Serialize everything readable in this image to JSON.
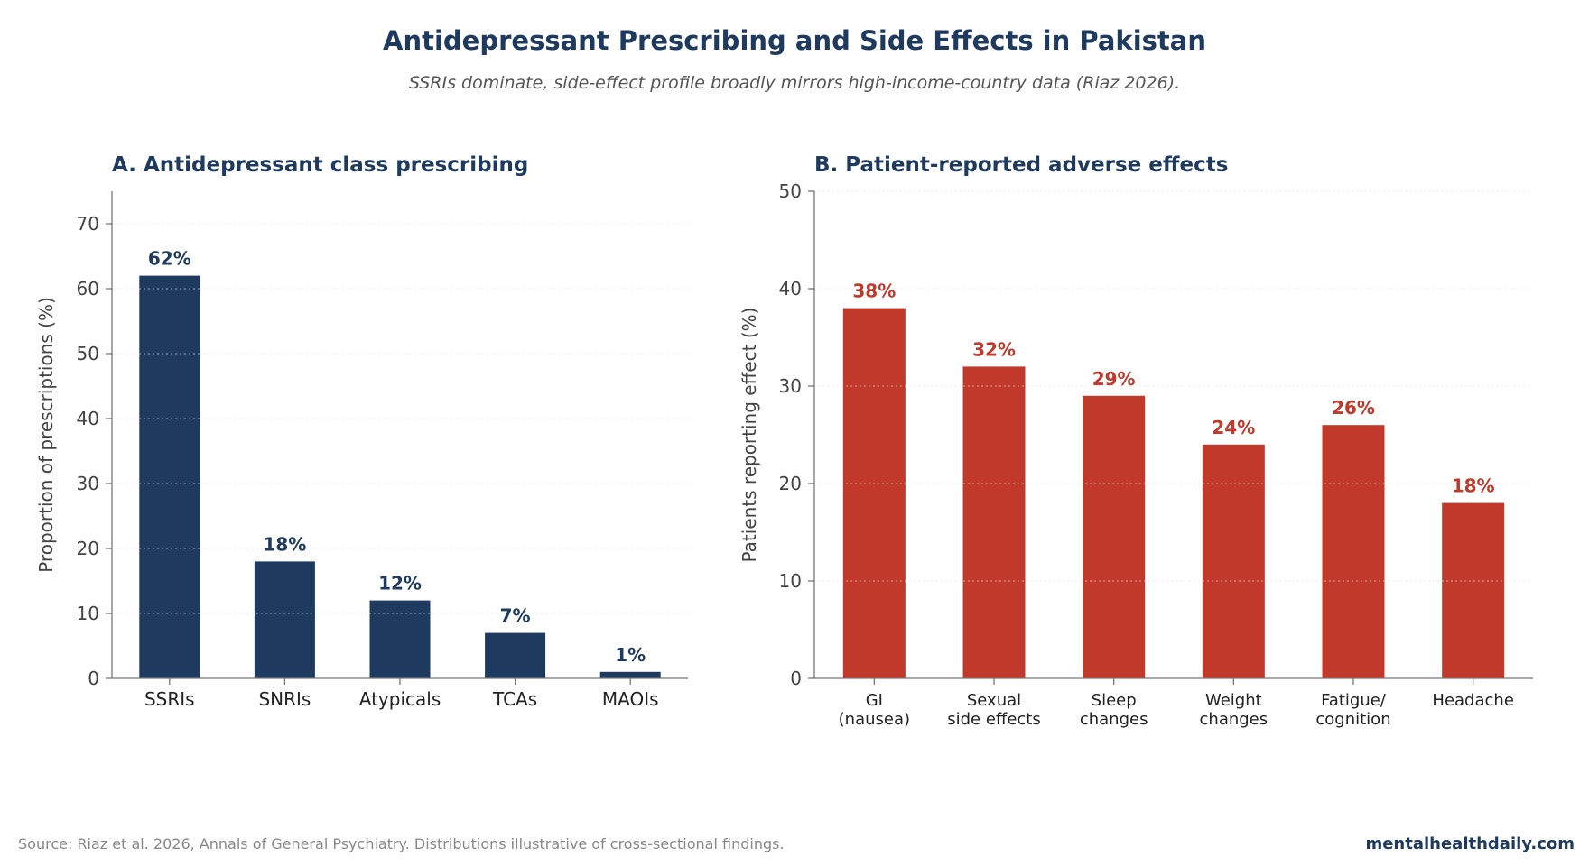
{
  "title": "Antidepressant Prescribing and Side Effects in Pakistan",
  "subtitle": "SSRIs dominate, side-effect profile broadly mirrors high-income-country data (Riaz 2026).",
  "footer": {
    "source": "Source: Riaz et al. 2026, Annals of General Psychiatry. Distributions illustrative of cross-sectional findings.",
    "brand": "mentalhealthdaily.com"
  },
  "colors": {
    "title": "#1f3a5f",
    "panel_a_bar": "#1f3a5f",
    "panel_b_bar": "#c0392b",
    "subtitle": "#555555",
    "footer_source": "#888888",
    "axis_text": "#444444",
    "axis_line": "#777777",
    "grid": "#d5d5d5"
  },
  "chart_data": [
    {
      "id": "panel-a",
      "type": "bar",
      "title": "A. Antidepressant class prescribing",
      "xlabel": "",
      "ylabel": "Proportion of prescriptions (%)",
      "categories": [
        [
          "SSRIs"
        ],
        [
          "SNRIs"
        ],
        [
          "Atypicals"
        ],
        [
          "TCAs"
        ],
        [
          "MAOIs"
        ]
      ],
      "values": [
        62,
        18,
        12,
        7,
        1
      ],
      "value_labels": [
        "62%",
        "18%",
        "12%",
        "7%",
        "1%"
      ],
      "ylim": [
        0,
        75
      ],
      "yticks": [
        0,
        10,
        20,
        30,
        40,
        50,
        60,
        70
      ],
      "grid": true,
      "legend": "none",
      "color_key": "panel_a_bar"
    },
    {
      "id": "panel-b",
      "type": "bar",
      "title": "B. Patient-reported adverse effects",
      "xlabel": "",
      "ylabel": "Patients reporting effect (%)",
      "categories": [
        [
          "GI",
          "(nausea)"
        ],
        [
          "Sexual",
          "side effects"
        ],
        [
          "Sleep",
          "changes"
        ],
        [
          "Weight",
          "changes"
        ],
        [
          "Fatigue/",
          "cognition"
        ],
        [
          "Headache"
        ]
      ],
      "values": [
        38,
        32,
        29,
        24,
        26,
        18
      ],
      "value_labels": [
        "38%",
        "32%",
        "29%",
        "24%",
        "26%",
        "18%"
      ],
      "ylim": [
        0,
        50
      ],
      "yticks": [
        0,
        10,
        20,
        30,
        40,
        50
      ],
      "grid": true,
      "legend": "none",
      "color_key": "panel_b_bar"
    }
  ]
}
